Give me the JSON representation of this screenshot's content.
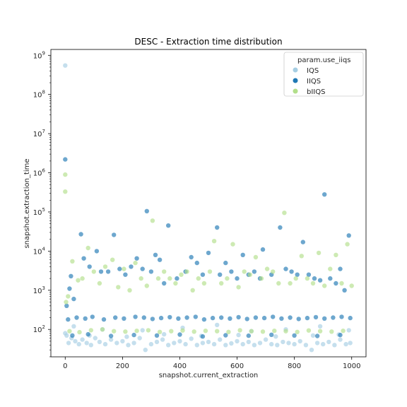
{
  "chart_data": {
    "type": "scatter",
    "title": "DESC - Extraction time distribution",
    "xlabel": "snapshot.current_extraction",
    "ylabel": "snapshot.extraction_time",
    "xlim": [
      -50,
      1050
    ],
    "ylim_log10": [
      1.3,
      9.15
    ],
    "yscale": "log",
    "xticks": [
      0,
      200,
      400,
      600,
      800,
      1000
    ],
    "yticks_exponents": [
      2,
      3,
      4,
      5,
      6,
      7,
      8,
      9
    ],
    "legend": {
      "title": "param.use_iiqs",
      "location": "upper right",
      "entries": [
        {
          "name": "IQS",
          "color": "#a6cee3"
        },
        {
          "name": "IIQS",
          "color": "#1f78b4"
        },
        {
          "name": "bIIQS",
          "color": "#b2df8a"
        }
      ]
    },
    "series": [
      {
        "name": "IQS",
        "color": "#a6cee3",
        "note": "sampled approximation of a dense point cloud; values are extraction time",
        "x": [
          0,
          0,
          5,
          12,
          22,
          35,
          48,
          60,
          75,
          90,
          105,
          120,
          140,
          160,
          180,
          200,
          220,
          240,
          260,
          280,
          300,
          320,
          340,
          360,
          380,
          400,
          420,
          440,
          460,
          480,
          500,
          520,
          540,
          560,
          580,
          600,
          620,
          640,
          660,
          680,
          700,
          720,
          740,
          760,
          780,
          800,
          820,
          840,
          860,
          880,
          900,
          920,
          940,
          960,
          980,
          995,
          30,
          130,
          270,
          410,
          530,
          650,
          770,
          890,
          990,
          85,
          215,
          345,
          475,
          605,
          735,
          865,
          955
        ],
        "y": [
          550000000,
          80,
          70,
          45,
          60,
          50,
          42,
          55,
          45,
          40,
          60,
          48,
          42,
          55,
          45,
          50,
          40,
          45,
          60,
          30,
          42,
          48,
          55,
          40,
          45,
          50,
          42,
          58,
          40,
          45,
          48,
          42,
          55,
          40,
          44,
          50,
          42,
          48,
          40,
          45,
          55,
          42,
          40,
          48,
          45,
          42,
          50,
          40,
          30,
          45,
          42,
          48,
          40,
          55,
          42,
          45,
          120,
          100,
          95,
          110,
          130,
          90,
          100,
          120,
          95,
          70,
          65,
          75,
          68,
          72,
          66,
          70,
          74
        ]
      },
      {
        "name": "IIQS",
        "color": "#1f78b4",
        "note": "sampled approximation of a dense point cloud; values are extraction time",
        "x": [
          0,
          5,
          15,
          20,
          30,
          55,
          65,
          85,
          110,
          125,
          150,
          170,
          190,
          210,
          230,
          250,
          270,
          285,
          300,
          315,
          330,
          345,
          360,
          390,
          420,
          440,
          460,
          480,
          500,
          530,
          540,
          560,
          580,
          600,
          620,
          640,
          660,
          680,
          690,
          720,
          750,
          770,
          790,
          810,
          830,
          850,
          870,
          890,
          905,
          925,
          945,
          960,
          975,
          990,
          10,
          40,
          70,
          95,
          135,
          175,
          205,
          245,
          275,
          305,
          335,
          365,
          395,
          425,
          455,
          485,
          515,
          545,
          575,
          605,
          635,
          665,
          695,
          725,
          755,
          785,
          815,
          845,
          875,
          905,
          935,
          965,
          995,
          25,
          80,
          160,
          240,
          320,
          400,
          480,
          560,
          640,
          720,
          800,
          880,
          960
        ],
        "y": [
          2200000,
          400,
          1100,
          2300,
          600,
          27000,
          6500,
          4000,
          10000,
          3000,
          3000,
          26000,
          3500,
          2500,
          4000,
          6500,
          3500,
          105000,
          3000,
          8000,
          6000,
          1500,
          45000,
          2000,
          3000,
          7000,
          5000,
          2500,
          9000,
          40000,
          2500,
          5000,
          3000,
          2000,
          8000,
          2500,
          3000,
          2000,
          11000,
          2500,
          40000,
          3500,
          3000,
          2500,
          17000,
          2500,
          2000,
          1800,
          280000,
          2000,
          1500,
          3500,
          1000,
          25000,
          180,
          200,
          190,
          210,
          180,
          200,
          190,
          210,
          200,
          185,
          195,
          205,
          190,
          200,
          210,
          180,
          195,
          200,
          190,
          205,
          185,
          200,
          195,
          210,
          190,
          200,
          185,
          195,
          205,
          190,
          200,
          210,
          195,
          70,
          75,
          68,
          72,
          70,
          74,
          66,
          71,
          69,
          73,
          70,
          68,
          72
        ]
      },
      {
        "name": "bIIQS",
        "color": "#b2df8a",
        "note": "sampled approximation of a dense point cloud; values are extraction time",
        "x": [
          0,
          0,
          3,
          10,
          25,
          45,
          60,
          80,
          100,
          120,
          140,
          165,
          185,
          205,
          225,
          245,
          265,
          285,
          305,
          325,
          345,
          365,
          385,
          405,
          425,
          445,
          465,
          485,
          505,
          520,
          545,
          565,
          585,
          605,
          625,
          645,
          665,
          685,
          705,
          725,
          745,
          765,
          785,
          805,
          825,
          845,
          865,
          885,
          905,
          925,
          945,
          965,
          985,
          1000,
          15,
          50,
          90,
          130,
          170,
          210,
          250,
          290,
          330,
          370,
          410,
          450,
          490,
          530,
          570,
          610,
          650,
          690,
          730,
          770,
          810,
          850,
          890,
          930,
          970
        ],
        "y": [
          900000,
          330000,
          500,
          700,
          5500,
          1800,
          2000,
          12000,
          3000,
          1500,
          4000,
          6000,
          1200,
          3500,
          1000,
          5000,
          2000,
          1300,
          60000,
          2000,
          3000,
          2000,
          1500,
          2500,
          3000,
          1000,
          2000,
          1500,
          3000,
          18000,
          1500,
          2000,
          15000,
          1200,
          3000,
          2500,
          7000,
          2000,
          3500,
          3000,
          1500,
          95000,
          1500,
          2000,
          7500,
          2000,
          1500,
          9000,
          1300,
          3500,
          8000,
          1500,
          15000,
          1300,
          90,
          85,
          95,
          100,
          90,
          88,
          92,
          95,
          86,
          90,
          94,
          88,
          92,
          90,
          86,
          95,
          90,
          88,
          92,
          90,
          86,
          94,
          90,
          88,
          92
        ]
      }
    ]
  }
}
